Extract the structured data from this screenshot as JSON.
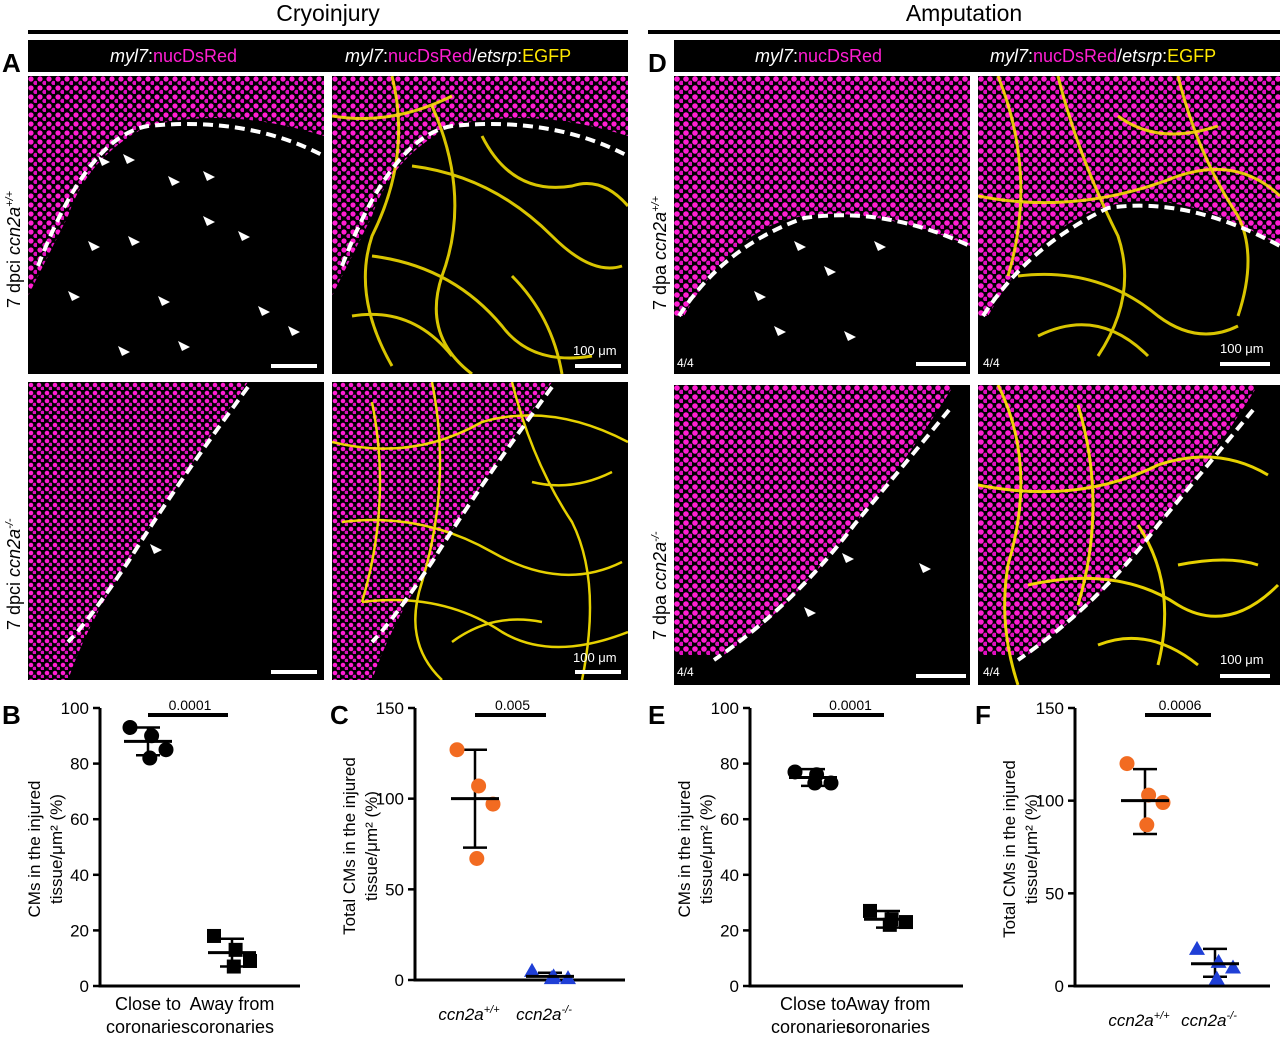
{
  "sections": {
    "left": "Cryoinjury",
    "right": "Amputation"
  },
  "panel_letters": {
    "A": "A",
    "B": "B",
    "C": "C",
    "D": "D",
    "E": "E",
    "F": "F"
  },
  "headers": {
    "h1_italic": "myl7",
    "h1_colon": ":",
    "h1_red": "nucDsRed",
    "h2_italic1": "myl7",
    "h2_colon1": ":",
    "h2_red": "nucDsRed",
    "h2_slash": "/",
    "h2_italic2": "etsrp",
    "h2_colon2": ":",
    "h2_egfp": "EGFP"
  },
  "row_labels": {
    "dpci": "7 dpci ",
    "dpa": "7 dpa ",
    "gene": "ccn2a",
    "wt_sup": "+/+",
    "mut_sup": "-/-"
  },
  "scale_label": "100 μm",
  "count_label": "4/4",
  "colors": {
    "magenta": "#ff1ed2",
    "yellow": "#ffe800",
    "orange": "#f26b21",
    "blue": "#1f3fd6"
  },
  "chart_data": [
    {
      "panel": "B",
      "type": "scatter",
      "ylabel": "CMs in the injured tissue/μm² (%)",
      "categories": [
        "Close to coronaries",
        "Away from coronaries"
      ],
      "ylim": [
        0,
        100
      ],
      "yticks": [
        0,
        20,
        40,
        60,
        80,
        100
      ],
      "series": [
        {
          "marker": "circle",
          "color": "#000000",
          "category": 0,
          "values": [
            93,
            90,
            85,
            82
          ],
          "mean": 88,
          "sd_low": 83,
          "sd_high": 93
        },
        {
          "marker": "square",
          "color": "#000000",
          "category": 1,
          "values": [
            18,
            13,
            9,
            7
          ],
          "mean": 12,
          "sd_low": 7,
          "sd_high": 17
        }
      ],
      "pvalue": "0.0001"
    },
    {
      "panel": "C",
      "type": "scatter",
      "ylabel": "Total CMs in the injured tissue/μm² (%)",
      "categories": [
        "ccn2a+/+",
        "ccn2a-/-"
      ],
      "ylim": [
        0,
        150
      ],
      "yticks": [
        0,
        50,
        100,
        150
      ],
      "series": [
        {
          "marker": "circle",
          "color": "#f26b21",
          "category": 0,
          "values": [
            127,
            107,
            97,
            67
          ],
          "mean": 100,
          "sd_low": 73,
          "sd_high": 127
        },
        {
          "marker": "triangle",
          "color": "#1f3fd6",
          "category": 1,
          "values": [
            5,
            2,
            1,
            1
          ],
          "mean": 2,
          "sd_low": 0,
          "sd_high": 4
        }
      ],
      "pvalue": "0.005"
    },
    {
      "panel": "E",
      "type": "scatter",
      "ylabel": "CMs in the injured tissue/μm² (%)",
      "categories": [
        "Close to coronaries",
        "Away from coronaries"
      ],
      "ylim": [
        0,
        100
      ],
      "yticks": [
        0,
        20,
        40,
        60,
        80,
        100
      ],
      "series": [
        {
          "marker": "circle",
          "color": "#000000",
          "category": 0,
          "values": [
            77,
            76,
            73,
            73
          ],
          "mean": 75,
          "sd_low": 72,
          "sd_high": 78
        },
        {
          "marker": "square",
          "color": "#000000",
          "category": 1,
          "values": [
            27,
            24,
            23,
            22
          ],
          "mean": 24,
          "sd_low": 21,
          "sd_high": 27
        }
      ],
      "pvalue": "0.0001"
    },
    {
      "panel": "F",
      "type": "scatter",
      "ylabel": "Total CMs in the injured tissue/μm² (%)",
      "categories": [
        "ccn2a+/+",
        "ccn2a-/-"
      ],
      "ylim": [
        0,
        150
      ],
      "yticks": [
        0,
        50,
        100,
        150
      ],
      "series": [
        {
          "marker": "circle",
          "color": "#f26b21",
          "category": 0,
          "values": [
            120,
            103,
            99,
            87
          ],
          "mean": 100,
          "sd_low": 82,
          "sd_high": 117
        },
        {
          "marker": "triangle",
          "color": "#1f3fd6",
          "category": 1,
          "values": [
            20,
            13,
            10,
            4
          ],
          "mean": 12,
          "sd_low": 5,
          "sd_high": 20
        }
      ],
      "pvalue": "0.0006"
    }
  ]
}
